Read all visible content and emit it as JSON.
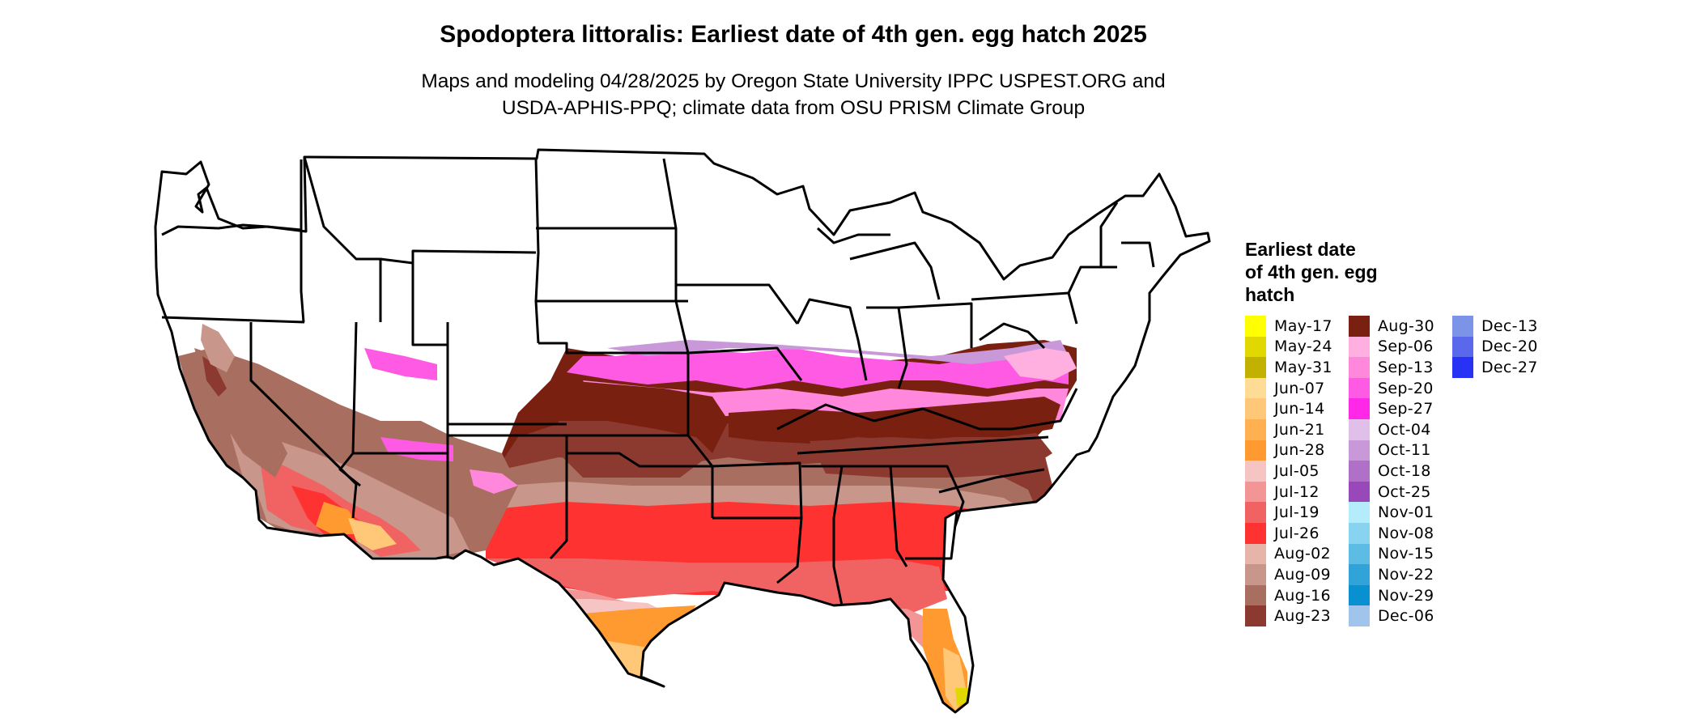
{
  "title": "Spodoptera littoralis: Earliest date of 4th gen. egg hatch 2025",
  "subtitle_line1": "Maps and modeling 04/28/2025 by Oregon State University IPPC USPEST.ORG and",
  "subtitle_line2": "USDA-APHIS-PPQ; climate data from OSU PRISM Climate Group",
  "legend": {
    "title_lines": [
      "Earliest date",
      "of 4th gen. egg",
      "hatch"
    ],
    "columns": [
      [
        {
          "label": "May-17",
          "color": "#ffff00"
        },
        {
          "label": "May-24",
          "color": "#e0d800"
        },
        {
          "label": "May-31",
          "color": "#c2b100"
        },
        {
          "label": "Jun-07",
          "color": "#ffdc96"
        },
        {
          "label": "Jun-14",
          "color": "#ffc878"
        },
        {
          "label": "Jun-21",
          "color": "#ffb050"
        },
        {
          "label": "Jun-28",
          "color": "#ff9a30"
        },
        {
          "label": "Jul-05",
          "color": "#f7c4c4"
        },
        {
          "label": "Jul-12",
          "color": "#f39595"
        },
        {
          "label": "Jul-19",
          "color": "#f16262"
        },
        {
          "label": "Jul-26",
          "color": "#ff3232"
        },
        {
          "label": "Aug-02",
          "color": "#e6b4a8"
        },
        {
          "label": "Aug-09",
          "color": "#c8968a"
        },
        {
          "label": "Aug-16",
          "color": "#a86e60"
        },
        {
          "label": "Aug-23",
          "color": "#8c3a30"
        }
      ],
      [
        {
          "label": "Aug-30",
          "color": "#7a2010"
        },
        {
          "label": "Sep-06",
          "color": "#ffb0e0"
        },
        {
          "label": "Sep-13",
          "color": "#ff88dc"
        },
        {
          "label": "Sep-20",
          "color": "#ff5ae4"
        },
        {
          "label": "Sep-27",
          "color": "#ff28e8"
        },
        {
          "label": "Oct-04",
          "color": "#e0c0e8"
        },
        {
          "label": "Oct-11",
          "color": "#c898d8"
        },
        {
          "label": "Oct-18",
          "color": "#b070c8"
        },
        {
          "label": "Oct-25",
          "color": "#9848b8"
        },
        {
          "label": "Nov-01",
          "color": "#b4ecfc"
        },
        {
          "label": "Nov-08",
          "color": "#88d4f0"
        },
        {
          "label": "Nov-15",
          "color": "#5cbce4"
        },
        {
          "label": "Nov-22",
          "color": "#30a4d8"
        },
        {
          "label": "Nov-29",
          "color": "#0890d0"
        },
        {
          "label": "Dec-06",
          "color": "#a0c4ec"
        }
      ],
      [
        {
          "label": "Dec-13",
          "color": "#7c94e8"
        },
        {
          "label": "Dec-20",
          "color": "#5a68ec"
        },
        {
          "label": "Dec-27",
          "color": "#2832f4"
        }
      ]
    ]
  },
  "map_colors": {
    "aug30": "#7a2010",
    "aug23": "#8c3a30",
    "aug16": "#a86e60",
    "aug09": "#c8968a",
    "aug02": "#e6b4a8",
    "jul26": "#ff3232",
    "jul19": "#f16262",
    "jul12": "#f39595",
    "jul05": "#f7c4c4",
    "jun28": "#ff9a30",
    "jun14": "#ffc878",
    "jun07": "#ffdc96",
    "may24": "#e0d800",
    "sep06": "#ffb0e0",
    "sep13": "#ff88dc",
    "sep20": "#ff5ae4",
    "oct11": "#c898d8",
    "oct04": "#e0c0e8",
    "nov15": "#5cbce4",
    "outline": "#000000"
  }
}
